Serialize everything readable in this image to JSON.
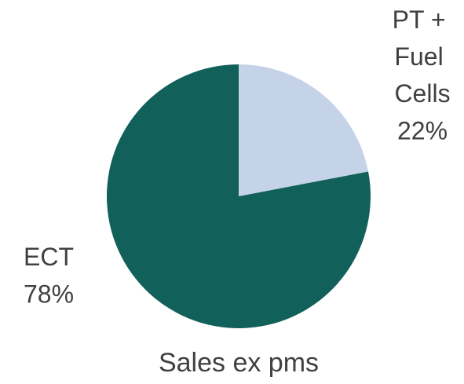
{
  "chart_data": {
    "type": "pie",
    "title": "Sales ex pms",
    "categories": [
      "PT + Fuel Cells",
      "ECT"
    ],
    "values": [
      22,
      78
    ],
    "value_labels": [
      "22%",
      "78%"
    ],
    "colors": [
      "#c5d3e8",
      "#12605a"
    ]
  }
}
